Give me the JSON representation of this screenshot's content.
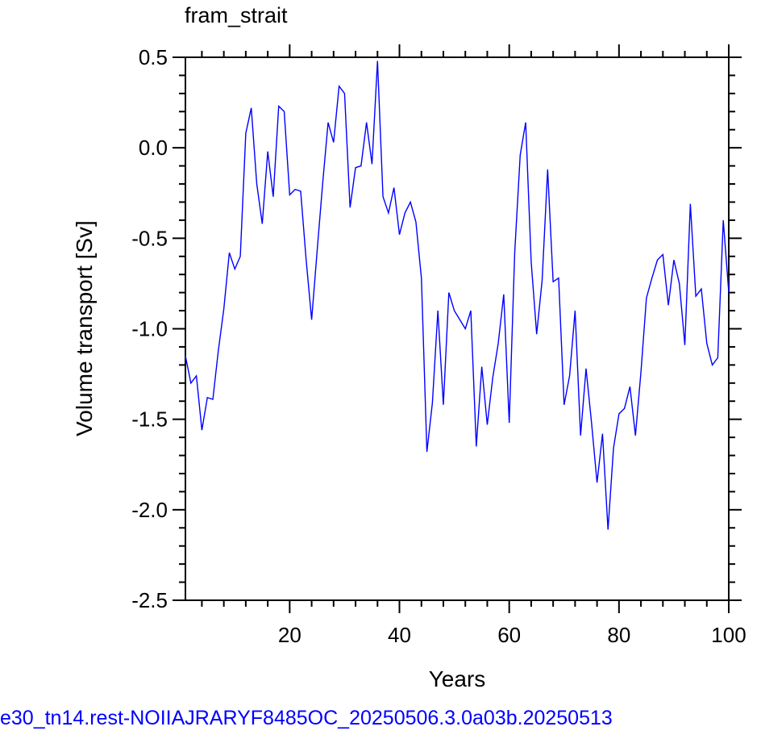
{
  "chart_data": {
    "type": "line",
    "title": "fram_strait",
    "xlabel": "Years",
    "ylabel": "Volume transport [Sv]",
    "xlim": [
      1,
      100
    ],
    "ylim": [
      -2.5,
      0.5
    ],
    "x_ticks": [
      20,
      40,
      60,
      80,
      100
    ],
    "x_tick_labels": [
      "20",
      "40",
      "60",
      "80",
      "100"
    ],
    "y_ticks": [
      0.5,
      0.0,
      -0.5,
      -1.0,
      -1.5,
      -2.0,
      -2.5
    ],
    "y_tick_labels": [
      "0.5",
      "0.0",
      "-0.5",
      "-1.0",
      "-1.5",
      "-2.0",
      "-2.5"
    ],
    "grid": false,
    "line_color": "#0000ff",
    "series": [
      {
        "values": [
          -1.15,
          -1.3,
          -1.26,
          -1.56,
          -1.38,
          -1.39,
          -1.12,
          -0.89,
          -0.58,
          -0.67,
          -0.6,
          0.08,
          0.22,
          -0.2,
          -0.42,
          -0.02,
          -0.27,
          0.23,
          0.2,
          -0.26,
          -0.23,
          -0.24,
          -0.62,
          -0.95,
          -0.57,
          -0.2,
          0.14,
          0.03,
          0.34,
          0.3,
          -0.33,
          -0.11,
          -0.1,
          0.14,
          -0.09,
          0.48,
          -0.27,
          -0.36,
          -0.22,
          -0.48,
          -0.36,
          -0.3,
          -0.41,
          -0.72,
          -1.68,
          -1.41,
          -0.9,
          -1.42,
          -0.8,
          -0.9,
          -0.95,
          -1.0,
          -0.9,
          -1.65,
          -1.21,
          -1.53,
          -1.27,
          -1.08,
          -0.81,
          -1.52,
          -0.58,
          -0.04,
          0.14,
          -0.63,
          -1.03,
          -0.73,
          -0.12,
          -0.74,
          -0.72,
          -1.42,
          -1.26,
          -0.9,
          -1.59,
          -1.22,
          -1.52,
          -1.85,
          -1.58,
          -2.11,
          -1.66,
          -1.47,
          -1.44,
          -1.32,
          -1.59,
          -1.24,
          -0.83,
          -0.72,
          -0.62,
          -0.59,
          -0.87,
          -0.62,
          -0.75,
          -1.09,
          -0.31,
          -0.82,
          -0.78,
          -1.08,
          -1.2,
          -1.16,
          -0.4,
          -0.8
        ]
      }
    ]
  },
  "footer": {
    "text": "e30_tn14.rest-NOIIAJRARYF8485OC_20250506.3.0a03b.20250513",
    "color": "#0000ff"
  }
}
